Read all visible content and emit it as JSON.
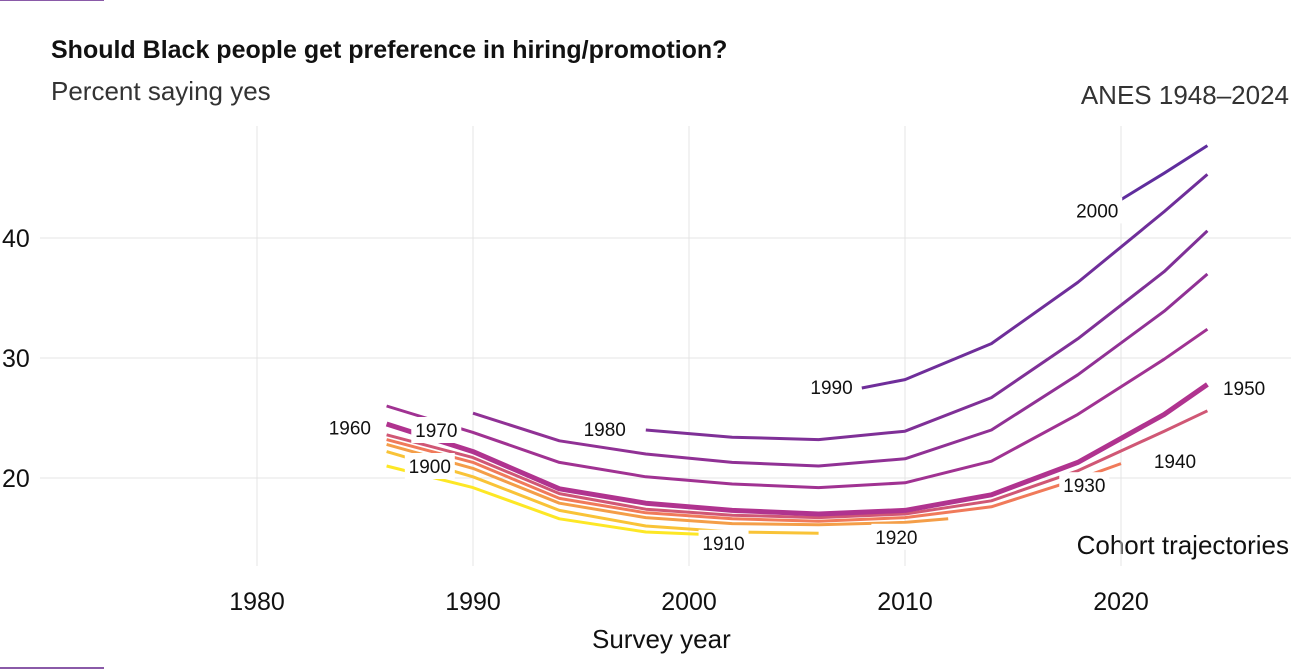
{
  "title": "Should Black people get preference in hiring/promotion?",
  "subtitle": "Percent saying yes",
  "source": "ANES 1948–2024",
  "legend_note": "Cohort trajectories",
  "chart_data": {
    "type": "line",
    "title": "Should Black people get preference in hiring/promotion?",
    "subtitle": "Percent saying yes",
    "xlabel": "Survey year",
    "ylabel": "",
    "xlim": [
      1972,
      2028
    ],
    "ylim": [
      13.5,
      46
    ],
    "x_ticks": [
      1980,
      1990,
      2000,
      2010,
      2020
    ],
    "y_ticks": [
      20,
      30,
      40
    ],
    "grid": true,
    "colors": {
      "oldest_cohort": "#fde725",
      "mid_cohort": "#f07a5a",
      "reference_cohort": "#b0338f",
      "youngest_cohort": "#5a2d9e"
    },
    "cohort_labels": [
      {
        "label": "1900",
        "x": 1988.0,
        "y": 21.0
      },
      {
        "label": "1910",
        "x": 2001.6,
        "y": 14.6
      },
      {
        "label": "1920",
        "x": 2009.6,
        "y": 15.1
      },
      {
        "label": "1930",
        "x": 2018.3,
        "y": 19.4
      },
      {
        "label": "1940",
        "x": 2022.5,
        "y": 21.4
      },
      {
        "label": "1950",
        "x": 2025.7,
        "y": 27.5
      },
      {
        "label": "1960",
        "x": 1984.3,
        "y": 24.2
      },
      {
        "label": "1970",
        "x": 1988.3,
        "y": 24.0
      },
      {
        "label": "1980",
        "x": 1996.1,
        "y": 24.1
      },
      {
        "label": "1990",
        "x": 2006.6,
        "y": 27.6
      },
      {
        "label": "2000",
        "x": 2018.9,
        "y": 42.3
      }
    ],
    "series": [
      {
        "name": "1900",
        "cohort": 1900,
        "x": [
          1986,
          1990,
          1994,
          1998,
          2002
        ],
        "y": [
          21.0,
          19.2,
          16.6,
          15.5,
          15.2
        ]
      },
      {
        "name": "1910",
        "cohort": 1910,
        "x": [
          1986,
          1990,
          1994,
          1998,
          2002,
          2006
        ],
        "y": [
          22.2,
          20.1,
          17.3,
          16.0,
          15.5,
          15.4
        ]
      },
      {
        "name": "1920",
        "cohort": 1920,
        "x": [
          1986,
          1990,
          1994,
          1998,
          2002,
          2006,
          2010,
          2012
        ],
        "y": [
          22.8,
          20.8,
          17.9,
          16.7,
          16.2,
          16.1,
          16.3,
          16.6
        ]
      },
      {
        "name": "1930",
        "cohort": 1930,
        "x": [
          1986,
          1990,
          1994,
          1998,
          2002,
          2006,
          2010,
          2014,
          2018,
          2020
        ],
        "y": [
          23.2,
          21.3,
          18.3,
          17.1,
          16.6,
          16.4,
          16.7,
          17.6,
          19.9,
          21.2
        ]
      },
      {
        "name": "1940",
        "cohort": 1940,
        "x": [
          1986,
          1990,
          1994,
          1998,
          2002,
          2006,
          2010,
          2014,
          2018,
          2022,
          2024
        ],
        "y": [
          23.6,
          21.7,
          18.7,
          17.4,
          16.9,
          16.7,
          17.0,
          18.1,
          20.6,
          23.9,
          25.6
        ]
      },
      {
        "name": "1950",
        "cohort": 1950,
        "x": [
          1986,
          1990,
          1994,
          1998,
          2002,
          2006,
          2010,
          2014,
          2018,
          2022,
          2024
        ],
        "y": [
          24.5,
          22.2,
          19.1,
          17.9,
          17.3,
          17.0,
          17.3,
          18.6,
          21.3,
          25.3,
          27.8
        ]
      },
      {
        "name": "1960",
        "cohort": 1960,
        "x": [
          1986,
          1990,
          1994,
          1998,
          2002,
          2006,
          2010,
          2014,
          2018,
          2022,
          2024
        ],
        "y": [
          26.0,
          23.8,
          21.3,
          20.1,
          19.5,
          19.2,
          19.6,
          21.4,
          25.3,
          29.9,
          32.4
        ]
      },
      {
        "name": "1970",
        "cohort": 1970,
        "x": [
          1990,
          1994,
          1998,
          2002,
          2006,
          2010,
          2014,
          2018,
          2022,
          2024
        ],
        "y": [
          25.4,
          23.1,
          22.0,
          21.3,
          21.0,
          21.6,
          24.0,
          28.6,
          33.9,
          37.0
        ]
      },
      {
        "name": "1980",
        "cohort": 1980,
        "x": [
          1998,
          2002,
          2006,
          2010,
          2014,
          2018,
          2022,
          2024
        ],
        "y": [
          24.0,
          23.4,
          23.2,
          23.9,
          26.7,
          31.6,
          37.2,
          40.6
        ]
      },
      {
        "name": "1990",
        "cohort": 1990,
        "x": [
          2008,
          2010,
          2014,
          2018,
          2022,
          2024
        ],
        "y": [
          27.5,
          28.2,
          31.2,
          36.3,
          42.2,
          45.3
        ]
      },
      {
        "name": "2000",
        "cohort": 2000,
        "x": [
          2020,
          2022,
          2024
        ],
        "y": [
          43.2,
          45.4,
          47.7
        ]
      }
    ]
  }
}
